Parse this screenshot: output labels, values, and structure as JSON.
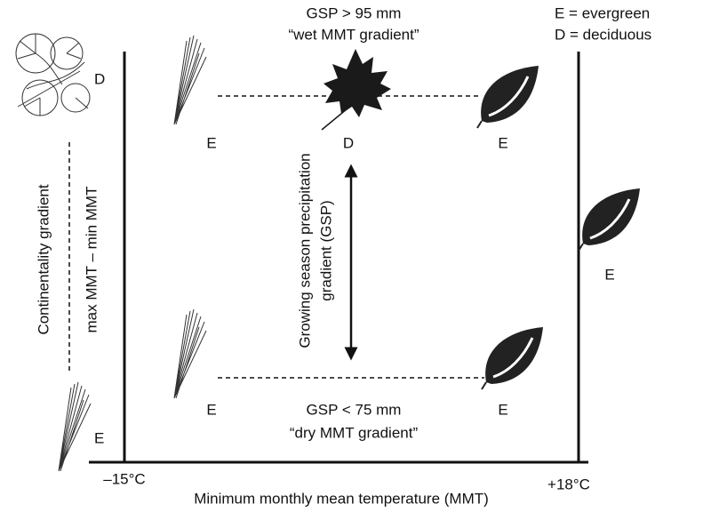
{
  "legend": {
    "evergreen": "E = evergreen",
    "deciduous": "D = deciduous"
  },
  "wet": {
    "title": "GSP > 95 mm",
    "subtitle": "“wet MMT gradient”",
    "labels": [
      "E",
      "D",
      "E"
    ]
  },
  "dry": {
    "title": "GSP < 75 mm",
    "subtitle": "“dry MMT gradient”",
    "labels": [
      "E",
      "E"
    ]
  },
  "left": {
    "top_label": "D",
    "bottom_label": "E",
    "gradient": "Continentality gradient",
    "formula": "max MMT – min MMT"
  },
  "right_label": "E",
  "gsp_axis": [
    "Growing season precipitation",
    "gradient (GSP)"
  ],
  "x_axis": {
    "min": "–15°C",
    "max": "+18°C",
    "title": "Minimum monthly mean temperature (MMT)"
  }
}
